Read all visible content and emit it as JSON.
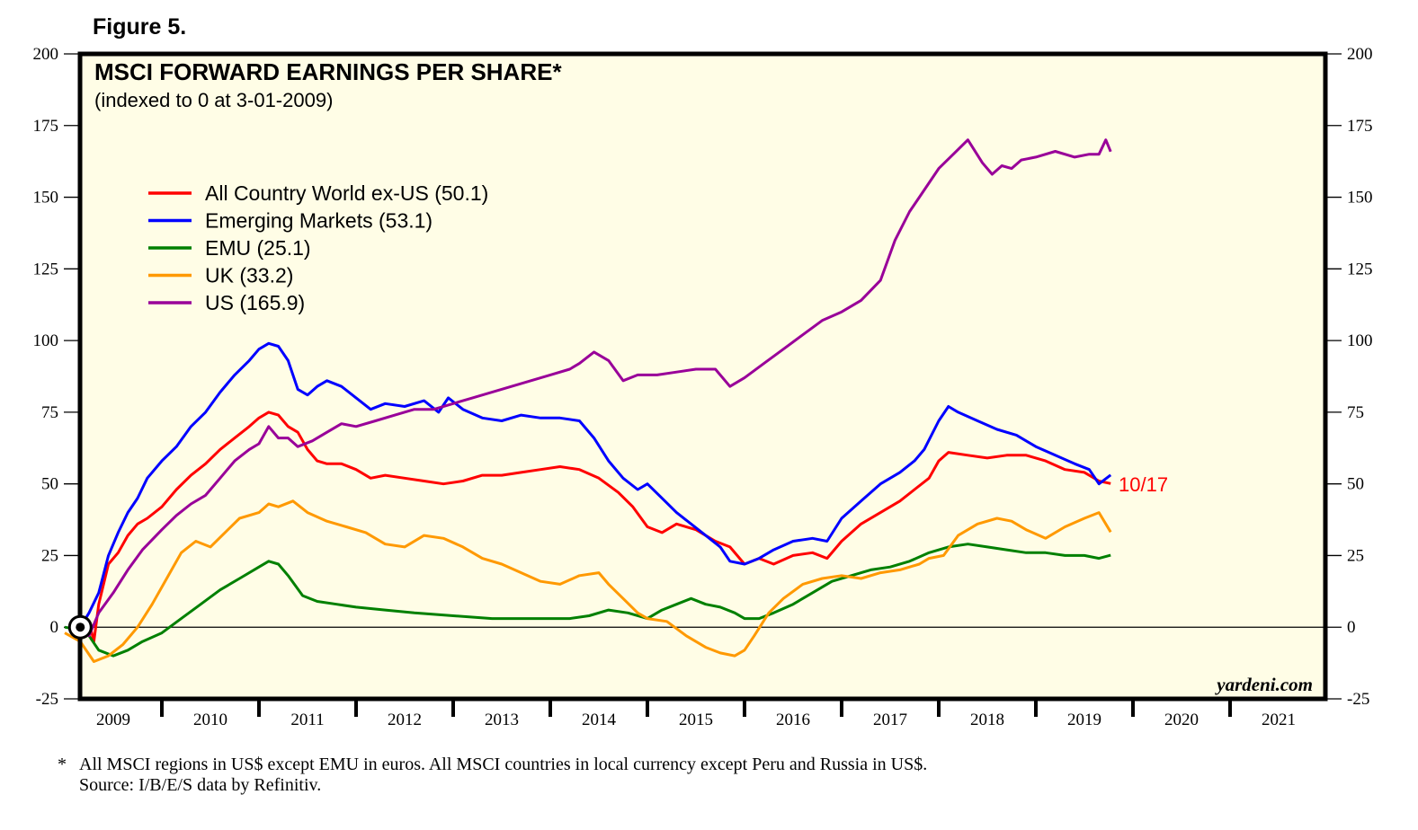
{
  "figure_label": "Figure 5.",
  "footnote": {
    "marker": "*",
    "line1": "All MSCI regions in US$ except EMU in euros. All MSCI countries in local currency except Peru and Russia in US$.",
    "line2": "Source: I/B/E/S data by Refinitiv."
  },
  "chart_data": {
    "type": "line",
    "title": "MSCI FORWARD EARNINGS PER SHARE*",
    "subtitle": "(indexed to 0 at 3-01-2009)",
    "xlabel": "",
    "ylabel": "",
    "ylim": [
      -25,
      200
    ],
    "yticks": [
      -25,
      0,
      25,
      50,
      75,
      100,
      125,
      150,
      175,
      200
    ],
    "ytick_labels": [
      "-25",
      "0",
      "25",
      "50",
      "75",
      "100",
      "125",
      "150",
      "175",
      "200"
    ],
    "xlim": [
      2009.0,
      2022.0
    ],
    "x_categories": [
      "2009",
      "2010",
      "2011",
      "2012",
      "2013",
      "2014",
      "2015",
      "2016",
      "2017",
      "2018",
      "2019",
      "2020",
      "2021"
    ],
    "grid": false,
    "zero_line": true,
    "legend_position": "top-left",
    "end_annotation": "10/17",
    "watermark": "yardeni.com",
    "origin_marker": {
      "x": 2009.16,
      "y": 0
    },
    "background_color": "#fffde6",
    "series": [
      {
        "name": "All Country World ex-US (50.1)",
        "color": "#ff0000",
        "x": [
          2009.16,
          2009.25,
          2009.3,
          2009.35,
          2009.45,
          2009.55,
          2009.65,
          2009.75,
          2009.85,
          2010.0,
          2010.15,
          2010.3,
          2010.45,
          2010.6,
          2010.75,
          2010.9,
          2011.0,
          2011.1,
          2011.2,
          2011.3,
          2011.4,
          2011.5,
          2011.6,
          2011.7,
          2011.85,
          2012.0,
          2012.15,
          2012.3,
          2012.5,
          2012.7,
          2012.9,
          2013.1,
          2013.3,
          2013.5,
          2013.7,
          2013.9,
          2014.1,
          2014.3,
          2014.5,
          2014.7,
          2014.85,
          2015.0,
          2015.15,
          2015.3,
          2015.5,
          2015.7,
          2015.85,
          2016.0,
          2016.15,
          2016.3,
          2016.5,
          2016.7,
          2016.85,
          2017.0,
          2017.2,
          2017.4,
          2017.6,
          2017.75,
          2017.9,
          2018.0,
          2018.1,
          2018.3,
          2018.5,
          2018.7,
          2018.9,
          2019.1,
          2019.3,
          2019.5,
          2019.65,
          2019.77
        ],
        "y": [
          0,
          2,
          -5,
          8,
          22,
          26,
          32,
          36,
          38,
          42,
          48,
          53,
          57,
          62,
          66,
          70,
          73,
          75,
          74,
          70,
          68,
          62,
          58,
          57,
          57,
          55,
          52,
          53,
          52,
          51,
          50,
          51,
          53,
          53,
          54,
          55,
          56,
          55,
          52,
          47,
          42,
          35,
          33,
          36,
          34,
          30,
          28,
          22,
          24,
          22,
          25,
          26,
          24,
          30,
          36,
          40,
          44,
          48,
          52,
          58,
          61,
          60,
          59,
          60,
          60,
          58,
          55,
          54,
          51,
          50.1
        ]
      },
      {
        "name": "Emerging Markets (53.1)",
        "color": "#0000ff",
        "x": [
          2009.16,
          2009.25,
          2009.35,
          2009.45,
          2009.55,
          2009.65,
          2009.75,
          2009.85,
          2010.0,
          2010.15,
          2010.3,
          2010.45,
          2010.6,
          2010.75,
          2010.9,
          2011.0,
          2011.1,
          2011.2,
          2011.3,
          2011.4,
          2011.5,
          2011.6,
          2011.7,
          2011.85,
          2012.0,
          2012.15,
          2012.3,
          2012.5,
          2012.7,
          2012.85,
          2012.95,
          2013.1,
          2013.3,
          2013.5,
          2013.7,
          2013.9,
          2014.1,
          2014.3,
          2014.45,
          2014.6,
          2014.75,
          2014.9,
          2015.0,
          2015.15,
          2015.3,
          2015.45,
          2015.6,
          2015.75,
          2015.85,
          2016.0,
          2016.15,
          2016.3,
          2016.5,
          2016.7,
          2016.85,
          2017.0,
          2017.2,
          2017.4,
          2017.6,
          2017.75,
          2017.85,
          2018.0,
          2018.1,
          2018.2,
          2018.4,
          2018.6,
          2018.8,
          2019.0,
          2019.2,
          2019.4,
          2019.55,
          2019.65,
          2019.77
        ],
        "y": [
          0,
          5,
          12,
          25,
          33,
          40,
          45,
          52,
          58,
          63,
          70,
          75,
          82,
          88,
          93,
          97,
          99,
          98,
          93,
          83,
          81,
          84,
          86,
          84,
          80,
          76,
          78,
          77,
          79,
          75,
          80,
          76,
          73,
          72,
          74,
          73,
          73,
          72,
          66,
          58,
          52,
          48,
          50,
          45,
          40,
          36,
          32,
          28,
          23,
          22,
          24,
          27,
          30,
          31,
          30,
          38,
          44,
          50,
          54,
          58,
          62,
          72,
          77,
          75,
          72,
          69,
          67,
          63,
          60,
          57,
          55,
          50,
          53.1
        ]
      },
      {
        "name": "EMU (25.1)",
        "color": "#008000",
        "x": [
          2009.0,
          2009.16,
          2009.25,
          2009.35,
          2009.5,
          2009.65,
          2009.8,
          2010.0,
          2010.2,
          2010.4,
          2010.6,
          2010.8,
          2011.0,
          2011.1,
          2011.2,
          2011.3,
          2011.45,
          2011.6,
          2011.8,
          2012.0,
          2012.3,
          2012.6,
          2013.0,
          2013.4,
          2013.8,
          2014.2,
          2014.4,
          2014.6,
          2014.8,
          2015.0,
          2015.15,
          2015.3,
          2015.45,
          2015.6,
          2015.75,
          2015.9,
          2016.0,
          2016.15,
          2016.3,
          2016.5,
          2016.7,
          2016.9,
          2017.1,
          2017.3,
          2017.5,
          2017.7,
          2017.9,
          2018.1,
          2018.3,
          2018.5,
          2018.7,
          2018.9,
          2019.1,
          2019.3,
          2019.5,
          2019.65,
          2019.77
        ],
        "y": [
          0,
          -1,
          -3,
          -8,
          -10,
          -8,
          -5,
          -2,
          3,
          8,
          13,
          17,
          21,
          23,
          22,
          18,
          11,
          9,
          8,
          7,
          6,
          5,
          4,
          3,
          3,
          3,
          4,
          6,
          5,
          3,
          6,
          8,
          10,
          8,
          7,
          5,
          3,
          3,
          5,
          8,
          12,
          16,
          18,
          20,
          21,
          23,
          26,
          28,
          29,
          28,
          27,
          26,
          26,
          25,
          25,
          24,
          25.1
        ]
      },
      {
        "name": "UK (33.2)",
        "color": "#ff9900",
        "x": [
          2009.0,
          2009.16,
          2009.3,
          2009.45,
          2009.6,
          2009.75,
          2009.9,
          2010.05,
          2010.2,
          2010.35,
          2010.5,
          2010.65,
          2010.8,
          2011.0,
          2011.1,
          2011.2,
          2011.35,
          2011.5,
          2011.7,
          2011.9,
          2012.1,
          2012.3,
          2012.5,
          2012.7,
          2012.9,
          2013.1,
          2013.3,
          2013.5,
          2013.7,
          2013.9,
          2014.1,
          2014.3,
          2014.5,
          2014.6,
          2014.75,
          2014.9,
          2015.0,
          2015.2,
          2015.4,
          2015.6,
          2015.75,
          2015.9,
          2016.0,
          2016.1,
          2016.25,
          2016.4,
          2016.6,
          2016.8,
          2017.0,
          2017.2,
          2017.4,
          2017.6,
          2017.8,
          2017.9,
          2018.05,
          2018.2,
          2018.4,
          2018.6,
          2018.75,
          2018.9,
          2019.1,
          2019.3,
          2019.5,
          2019.65,
          2019.77
        ],
        "y": [
          -2,
          -5,
          -12,
          -10,
          -6,
          0,
          8,
          17,
          26,
          30,
          28,
          33,
          38,
          40,
          43,
          42,
          44,
          40,
          37,
          35,
          33,
          29,
          28,
          32,
          31,
          28,
          24,
          22,
          19,
          16,
          15,
          18,
          19,
          15,
          10,
          5,
          3,
          2,
          -3,
          -7,
          -9,
          -10,
          -8,
          -3,
          5,
          10,
          15,
          17,
          18,
          17,
          19,
          20,
          22,
          24,
          25,
          32,
          36,
          38,
          37,
          34,
          31,
          35,
          38,
          40,
          33.2
        ]
      },
      {
        "name": "US (165.9)",
        "color": "#990099",
        "x": [
          2009.16,
          2009.25,
          2009.35,
          2009.5,
          2009.65,
          2009.8,
          2010.0,
          2010.15,
          2010.3,
          2010.45,
          2010.6,
          2010.75,
          2010.9,
          2011.0,
          2011.1,
          2011.2,
          2011.3,
          2011.4,
          2011.55,
          2011.7,
          2011.85,
          2012.0,
          2012.2,
          2012.4,
          2012.6,
          2012.8,
          2013.0,
          2013.2,
          2013.4,
          2013.6,
          2013.8,
          2014.0,
          2014.2,
          2014.3,
          2014.45,
          2014.6,
          2014.75,
          2014.9,
          2015.1,
          2015.3,
          2015.5,
          2015.7,
          2015.85,
          2016.0,
          2016.2,
          2016.4,
          2016.6,
          2016.8,
          2017.0,
          2017.2,
          2017.4,
          2017.55,
          2017.7,
          2017.8,
          2017.9,
          2018.0,
          2018.15,
          2018.3,
          2018.45,
          2018.55,
          2018.65,
          2018.75,
          2018.85,
          2019.0,
          2019.2,
          2019.4,
          2019.55,
          2019.65,
          2019.72,
          2019.77
        ],
        "y": [
          0,
          -3,
          5,
          12,
          20,
          27,
          34,
          39,
          43,
          46,
          52,
          58,
          62,
          64,
          70,
          66,
          66,
          63,
          65,
          68,
          71,
          70,
          72,
          74,
          76,
          76,
          78,
          80,
          82,
          84,
          86,
          88,
          90,
          92,
          96,
          93,
          86,
          88,
          88,
          89,
          90,
          90,
          84,
          87,
          92,
          97,
          102,
          107,
          110,
          114,
          121,
          135,
          145,
          150,
          155,
          160,
          165,
          170,
          162,
          158,
          161,
          160,
          163,
          164,
          166,
          164,
          165,
          165,
          170,
          165.9
        ]
      }
    ]
  }
}
